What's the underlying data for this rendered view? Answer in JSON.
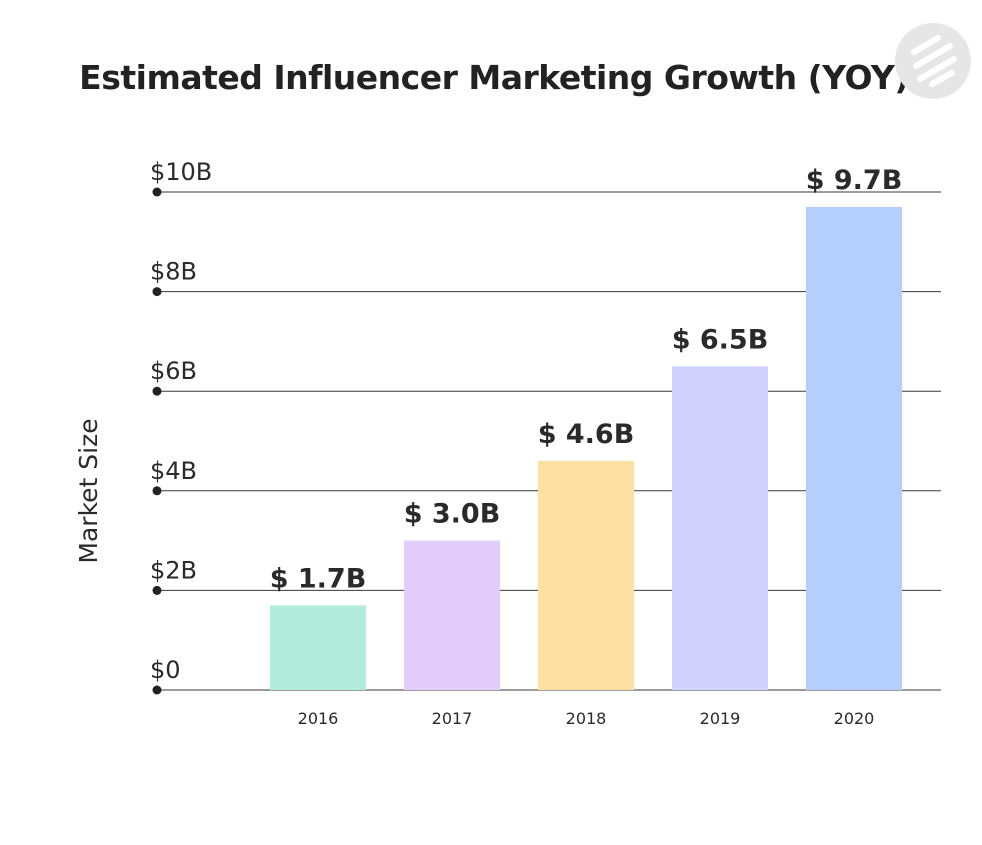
{
  "chart_data": {
    "type": "bar",
    "title": "Estimated Influencer Marketing Growth (YOY)",
    "xlabel": "",
    "ylabel": "Market Size",
    "categories": [
      "2016",
      "2017",
      "2018",
      "2019",
      "2020"
    ],
    "values": [
      1.7,
      3.0,
      4.6,
      6.5,
      9.7
    ],
    "data_labels": [
      "$ 1.7B",
      "$ 3.0B",
      "$ 4.6B",
      "$ 6.5B",
      "$ 9.7B"
    ],
    "bar_colors": [
      "#b2eddc",
      "#e2cdfb",
      "#fde0a4",
      "#d1d2fd",
      "#b4cffc"
    ],
    "y_ticks": [
      {
        "value": 0,
        "label": "$0"
      },
      {
        "value": 2,
        "label": "$2B"
      },
      {
        "value": 4,
        "label": "$4B"
      },
      {
        "value": 6,
        "label": "$6B"
      },
      {
        "value": 8,
        "label": "$8B"
      },
      {
        "value": 10,
        "label": "$10B"
      }
    ],
    "ylim": [
      0,
      10
    ],
    "grid": true,
    "legend": "none"
  },
  "logo": {
    "icon": "brand-logo-icon"
  }
}
